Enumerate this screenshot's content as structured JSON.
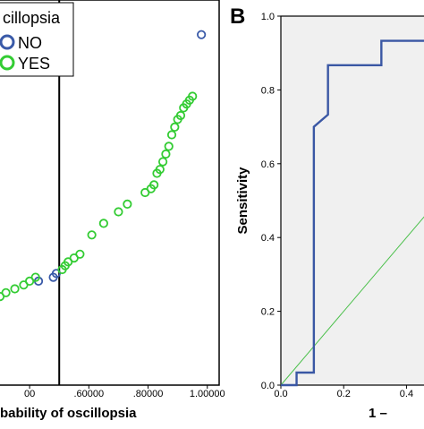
{
  "chart_data": [
    {
      "type": "scatter",
      "xlabel": "bability of oscillopsia",
      "ylabel": "",
      "xlim": [
        0.3,
        1.04
      ],
      "ylim": [
        0.0,
        1.0
      ],
      "x_ticks": [
        0.4,
        0.6,
        0.8,
        1.0
      ],
      "x_tick_labels": [
        "00",
        ".60000",
        ".80000",
        "1.00000"
      ],
      "cutoff_x": 0.5,
      "legend": {
        "title": "cillopsia",
        "placement": "top-left",
        "entries": [
          {
            "label": "NO",
            "color": "#3a5aa8"
          },
          {
            "label": "YES",
            "color": "#33cc33"
          }
        ]
      },
      "series": [
        {
          "name": "NO",
          "color": "#3a5aa8",
          "points": [
            [
              0.98,
              0.91
            ],
            [
              0.43,
              0.27
            ],
            [
              0.48,
              0.28
            ],
            [
              0.49,
              0.29
            ]
          ]
        },
        {
          "name": "YES",
          "color": "#33cc33",
          "points": [
            [
              0.3,
              0.23
            ],
            [
              0.32,
              0.24
            ],
            [
              0.35,
              0.25
            ],
            [
              0.38,
              0.26
            ],
            [
              0.4,
              0.27
            ],
            [
              0.42,
              0.28
            ],
            [
              0.51,
              0.3
            ],
            [
              0.52,
              0.31
            ],
            [
              0.53,
              0.32
            ],
            [
              0.55,
              0.33
            ],
            [
              0.57,
              0.34
            ],
            [
              0.61,
              0.39
            ],
            [
              0.65,
              0.42
            ],
            [
              0.7,
              0.45
            ],
            [
              0.73,
              0.47
            ],
            [
              0.79,
              0.5
            ],
            [
              0.81,
              0.51
            ],
            [
              0.82,
              0.52
            ],
            [
              0.83,
              0.55
            ],
            [
              0.84,
              0.56
            ],
            [
              0.85,
              0.58
            ],
            [
              0.86,
              0.6
            ],
            [
              0.87,
              0.62
            ],
            [
              0.88,
              0.65
            ],
            [
              0.89,
              0.67
            ],
            [
              0.9,
              0.69
            ],
            [
              0.91,
              0.7
            ],
            [
              0.92,
              0.72
            ],
            [
              0.93,
              0.73
            ],
            [
              0.94,
              0.74
            ],
            [
              0.95,
              0.75
            ]
          ]
        }
      ]
    },
    {
      "type": "line",
      "panel_label": "B",
      "xlabel": "1 –",
      "ylabel": "Sensitivity",
      "xlim": [
        0.0,
        0.47
      ],
      "ylim": [
        0.0,
        1.0
      ],
      "x_ticks": [
        0.0,
        0.2,
        0.4
      ],
      "x_tick_labels": [
        "0.0",
        "0.2",
        "0.4"
      ],
      "y_ticks": [
        0.0,
        0.2,
        0.4,
        0.6,
        0.8,
        1.0
      ],
      "y_tick_labels": [
        "0.0",
        "0.2",
        "0.4",
        "0.6",
        "0.8",
        "1.0"
      ],
      "series": [
        {
          "name": "",
          "color": "#3a57a4",
          "x": [
            0.0,
            0.05,
            0.05,
            0.105,
            0.105,
            0.15,
            0.15,
            0.32,
            0.32,
            0.47
          ],
          "y": [
            0.0,
            0.0,
            0.034,
            0.034,
            0.7,
            0.733,
            0.867,
            0.867,
            0.933,
            0.933
          ]
        },
        {
          "name": "",
          "color": "#4cc04c",
          "x": [
            0.0,
            0.47
          ],
          "y": [
            0.0,
            0.47
          ]
        }
      ]
    }
  ]
}
